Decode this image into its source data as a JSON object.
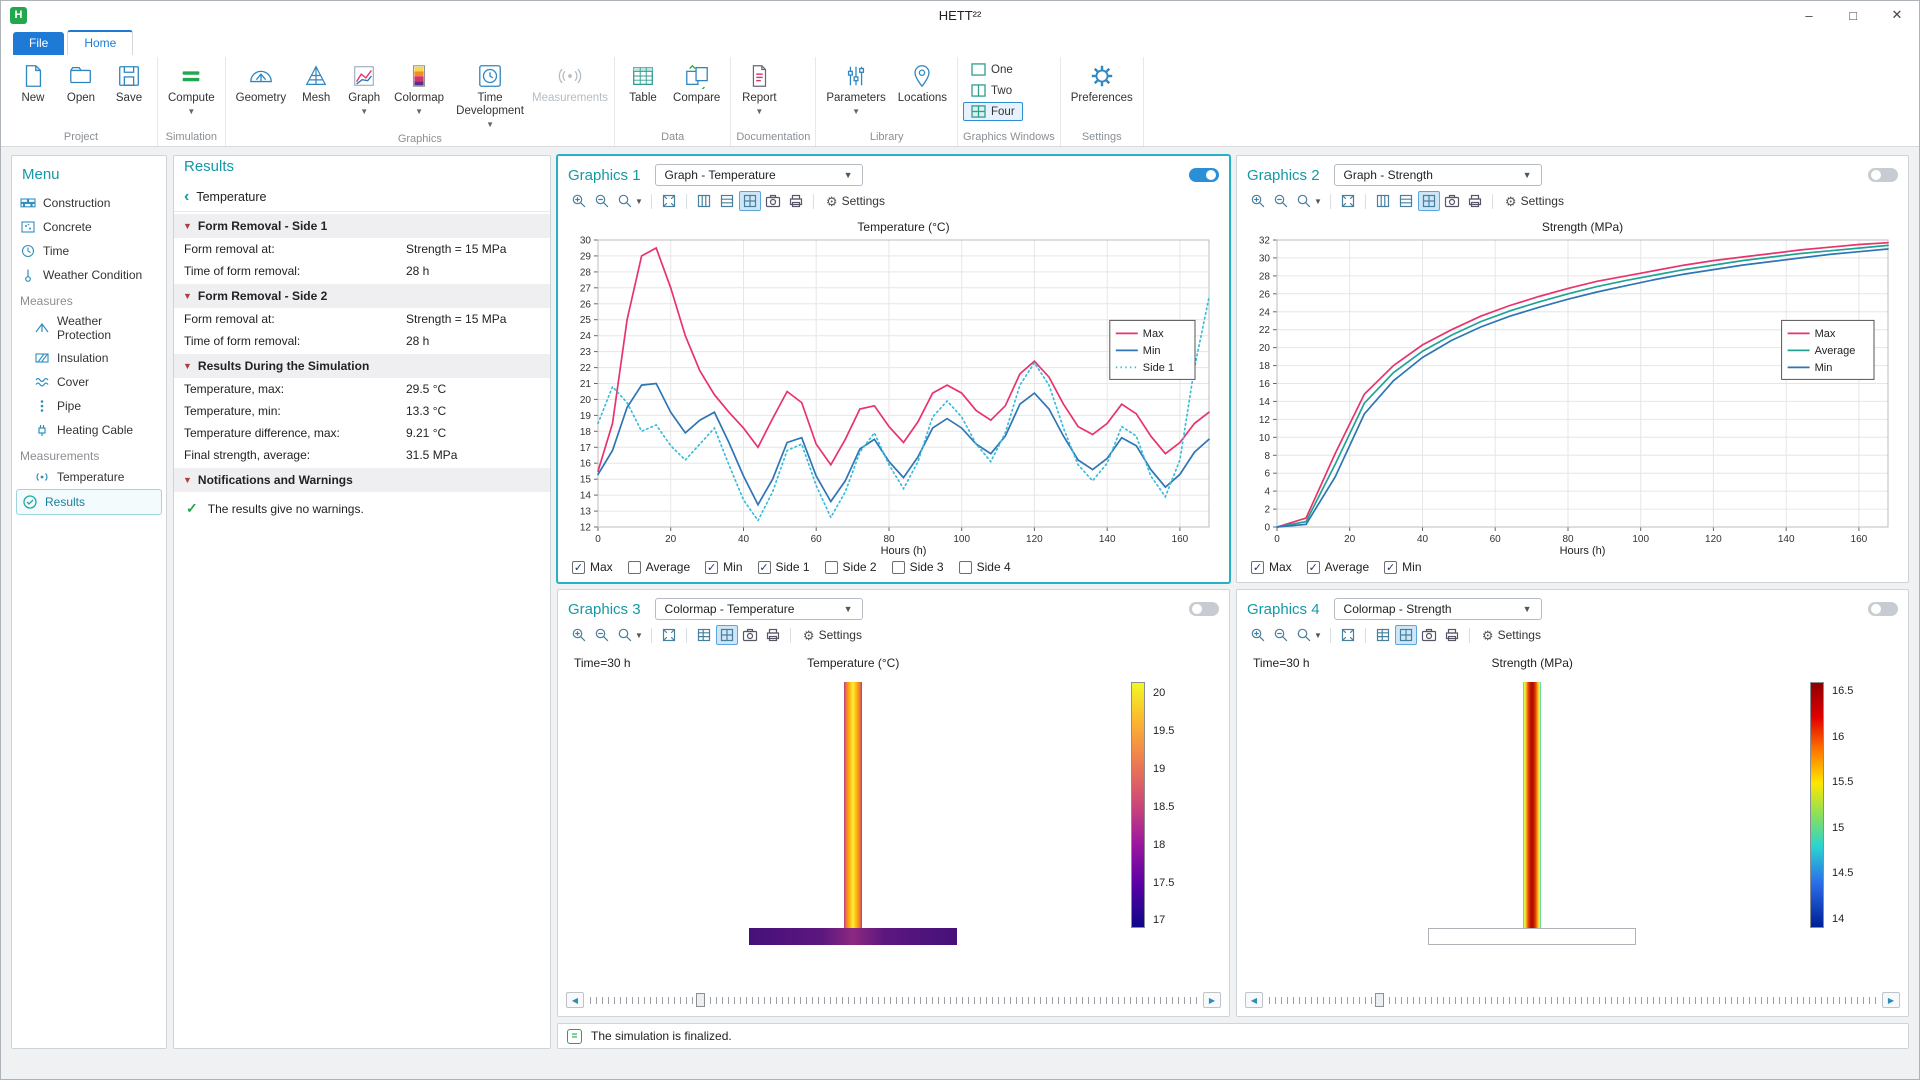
{
  "window": {
    "title": "HETT²²"
  },
  "tabs": {
    "file": {
      "label": "File"
    },
    "home": {
      "label": "Home"
    }
  },
  "ribbon": {
    "groups": [
      {
        "name": "Project",
        "items": [
          {
            "label": "New"
          },
          {
            "label": "Open"
          },
          {
            "label": "Save"
          }
        ]
      },
      {
        "name": "Simulation",
        "items": [
          {
            "label": "Compute"
          }
        ]
      },
      {
        "name": "Graphics",
        "items": [
          {
            "label": "Geometry"
          },
          {
            "label": "Mesh"
          },
          {
            "label": "Graph"
          },
          {
            "label": "Colormap"
          },
          {
            "label": "Time Development"
          },
          {
            "label": "Measurements"
          }
        ]
      },
      {
        "name": "Data",
        "items": [
          {
            "label": "Table"
          },
          {
            "label": "Compare"
          }
        ]
      },
      {
        "name": "Documentation",
        "items": [
          {
            "label": "Report"
          }
        ]
      },
      {
        "name": "Library",
        "items": [
          {
            "label": "Parameters"
          },
          {
            "label": "Locations"
          }
        ]
      },
      {
        "name": "Graphics Windows",
        "items": [
          {
            "label": "One"
          },
          {
            "label": "Two"
          },
          {
            "label": "Four"
          }
        ]
      },
      {
        "name": "Settings",
        "items": [
          {
            "label": "Preferences"
          }
        ]
      }
    ]
  },
  "menu": {
    "title": "Menu",
    "items": [
      {
        "label": "Construction"
      },
      {
        "label": "Concrete"
      },
      {
        "label": "Time"
      },
      {
        "label": "Weather Condition"
      },
      {
        "label": "Measures"
      },
      {
        "label": "Weather Protection"
      },
      {
        "label": "Insulation"
      },
      {
        "label": "Cover"
      },
      {
        "label": "Pipe"
      },
      {
        "label": "Heating Cable"
      },
      {
        "label": "Measurements"
      },
      {
        "label": "Temperature"
      },
      {
        "label": "Results"
      }
    ]
  },
  "results": {
    "title": "Results",
    "back_label": "Temperature",
    "sections": [
      {
        "title": "Form Removal - Side 1",
        "rows": [
          [
            "Form removal at:",
            "Strength = 15 MPa"
          ],
          [
            "Time of form removal:",
            "28 h"
          ]
        ]
      },
      {
        "title": "Form Removal - Side 2",
        "rows": [
          [
            "Form removal at:",
            "Strength = 15 MPa"
          ],
          [
            "Time of form removal:",
            "28 h"
          ]
        ]
      },
      {
        "title": "Results During the Simulation",
        "rows": [
          [
            "Temperature, max:",
            "29.5 °C"
          ],
          [
            "Temperature, min:",
            "13.3 °C"
          ],
          [
            "Temperature difference, max:",
            "9.21 °C"
          ],
          [
            "Final strength, average:",
            "31.5 MPa"
          ]
        ]
      },
      {
        "title": "Notifications and Warnings",
        "note": "The results give no warnings."
      }
    ]
  },
  "graphics_panels": [
    {
      "title": "Graphics 1",
      "dropdown": "Graph - Temperature",
      "settings": "Settings",
      "toggle_on": true,
      "checkboxes": [
        {
          "label": "Max",
          "checked": true
        },
        {
          "label": "Average",
          "checked": false
        },
        {
          "label": "Min",
          "checked": true
        },
        {
          "label": "Side 1",
          "checked": true
        },
        {
          "label": "Side 2",
          "checked": false
        },
        {
          "label": "Side 3",
          "checked": false
        },
        {
          "label": "Side 4",
          "checked": false
        }
      ]
    },
    {
      "title": "Graphics 2",
      "dropdown": "Graph - Strength",
      "settings": "Settings",
      "toggle_on": false,
      "checkboxes": [
        {
          "label": "Max",
          "checked": true
        },
        {
          "label": "Average",
          "checked": true
        },
        {
          "label": "Min",
          "checked": true
        }
      ]
    },
    {
      "title": "Graphics 3",
      "dropdown": "Colormap - Temperature",
      "settings": "Settings",
      "toggle_on": false
    },
    {
      "title": "Graphics 4",
      "dropdown": "Colormap - Strength",
      "settings": "Settings",
      "toggle_on": false
    }
  ],
  "status": {
    "message": "The simulation is finalized."
  },
  "colors": {
    "accent_teal": "#1499a6",
    "tab_blue": "#1e7ad4",
    "compute_green": "#21a84c",
    "toggle_on": "#2b8fd8",
    "series_pink": "#e8336e",
    "series_blue": "#2e75b6",
    "series_cyan": "#3bbcd9",
    "series_teal": "#21a394"
  },
  "chart_data": [
    {
      "type": "line",
      "title": "Temperature (°C)",
      "xlabel": "Hours (h)",
      "ylabel": "",
      "xlim": [
        0,
        168
      ],
      "ylim": [
        12,
        30
      ],
      "ytick_step": 1,
      "xticks": [
        0,
        20,
        40,
        60,
        80,
        100,
        120,
        140,
        160
      ],
      "legend_position": "right-middle",
      "grid": true,
      "x": [
        0,
        4,
        8,
        12,
        16,
        20,
        24,
        28,
        32,
        36,
        40,
        44,
        48,
        52,
        56,
        60,
        64,
        68,
        72,
        76,
        80,
        84,
        88,
        92,
        96,
        100,
        104,
        108,
        112,
        116,
        120,
        124,
        128,
        132,
        136,
        140,
        144,
        148,
        152,
        156,
        160,
        164,
        168
      ],
      "series": [
        {
          "name": "Max",
          "color": "#e8336e",
          "dash": null,
          "values": [
            15.5,
            18.5,
            25.0,
            29.0,
            29.5,
            27.0,
            24.0,
            21.8,
            20.3,
            19.2,
            18.2,
            17.0,
            18.8,
            20.5,
            19.8,
            17.2,
            15.9,
            17.5,
            19.4,
            19.6,
            18.3,
            17.3,
            18.6,
            20.4,
            20.9,
            20.4,
            19.3,
            18.7,
            19.6,
            21.6,
            22.4,
            21.4,
            19.7,
            18.3,
            17.8,
            18.5,
            19.7,
            19.1,
            17.7,
            16.6,
            17.3,
            18.5,
            19.2
          ]
        },
        {
          "name": "Min",
          "color": "#2e75b6",
          "dash": null,
          "values": [
            15.3,
            16.8,
            19.5,
            20.9,
            21.0,
            19.2,
            17.9,
            18.7,
            19.2,
            17.3,
            15.2,
            13.4,
            15.0,
            17.3,
            17.6,
            15.2,
            13.6,
            14.9,
            16.9,
            17.5,
            16.1,
            15.1,
            16.4,
            18.2,
            18.8,
            18.2,
            17.2,
            16.6,
            17.7,
            19.7,
            20.4,
            19.4,
            17.7,
            16.2,
            15.6,
            16.3,
            17.6,
            17.1,
            15.6,
            14.5,
            15.3,
            16.7,
            17.5
          ]
        },
        {
          "name": "Side 1",
          "color": "#3bbcd9",
          "dash": "1.5,3.2",
          "values": [
            18.5,
            20.8,
            19.8,
            18.0,
            18.4,
            17.1,
            16.2,
            17.2,
            18.2,
            15.9,
            13.7,
            12.4,
            14.2,
            16.8,
            17.2,
            14.6,
            12.6,
            14.2,
            16.7,
            17.9,
            15.9,
            14.4,
            16.1,
            18.9,
            19.9,
            18.9,
            17.2,
            16.1,
            17.9,
            20.9,
            22.3,
            20.9,
            18.2,
            15.9,
            14.9,
            16.0,
            18.3,
            17.7,
            15.2,
            13.9,
            16.2,
            22.0,
            26.4
          ]
        }
      ]
    },
    {
      "type": "line",
      "title": "Strength (MPa)",
      "xlabel": "Hours (h)",
      "ylabel": "",
      "xlim": [
        0,
        168
      ],
      "ylim": [
        0,
        32
      ],
      "ytick_step": 2,
      "xticks": [
        0,
        20,
        40,
        60,
        80,
        100,
        120,
        140,
        160
      ],
      "legend_position": "right-middle",
      "grid": true,
      "x": [
        0,
        8,
        16,
        24,
        32,
        40,
        48,
        56,
        64,
        72,
        80,
        88,
        96,
        104,
        112,
        120,
        128,
        136,
        144,
        152,
        160,
        168
      ],
      "series": [
        {
          "name": "Max",
          "color": "#e8336e",
          "dash": null,
          "values": [
            0,
            1.0,
            8.2,
            14.8,
            18.0,
            20.3,
            22.0,
            23.5,
            24.7,
            25.7,
            26.6,
            27.4,
            28.0,
            28.6,
            29.2,
            29.7,
            30.1,
            30.5,
            30.9,
            31.2,
            31.5,
            31.7
          ]
        },
        {
          "name": "Average",
          "color": "#21a394",
          "dash": null,
          "values": [
            0,
            0.6,
            7.0,
            13.8,
            17.2,
            19.6,
            21.4,
            22.9,
            24.1,
            25.1,
            26.0,
            26.8,
            27.5,
            28.1,
            28.7,
            29.2,
            29.7,
            30.1,
            30.5,
            30.8,
            31.1,
            31.4
          ]
        },
        {
          "name": "Min",
          "color": "#2e75b6",
          "dash": null,
          "values": [
            0,
            0.3,
            5.6,
            12.6,
            16.3,
            18.9,
            20.8,
            22.3,
            23.5,
            24.5,
            25.4,
            26.2,
            26.9,
            27.6,
            28.2,
            28.7,
            29.2,
            29.6,
            30.0,
            30.4,
            30.7,
            31.0
          ]
        }
      ]
    },
    {
      "type": "heatmap",
      "title": "Temperature (°C)",
      "time_label": "Time=30 h",
      "colorbar_ticks": [
        20,
        19.5,
        19,
        18.5,
        18,
        17.5,
        17
      ],
      "colorbar_range": [
        16.9,
        20.15
      ],
      "colorbar_gradient": [
        "#f0f921 0%",
        "#fdb42f 16%",
        "#ed7953 33%",
        "#cc4778 50%",
        "#9c179e 66%",
        "#5c01a6 82%",
        "#0d0887 100%"
      ],
      "column_gradient": [
        "#b5367a 0%",
        "#e16462 8%",
        "#fb9b06 22%",
        "#fbd724 42%",
        "#fdea45 50%",
        "#fbd724 58%",
        "#fb9b06 78%",
        "#e16462 92%",
        "#b5367a 100%"
      ],
      "slab_gradient": [
        "#46107a 0%",
        "#5c177f 35%",
        "#8c2981 50%",
        "#5c177f 65%",
        "#46107a 100%"
      ]
    },
    {
      "type": "heatmap",
      "title": "Strength (MPa)",
      "time_label": "Time=30 h",
      "colorbar_ticks": [
        16.5,
        16,
        15.5,
        15,
        14.5,
        14
      ],
      "colorbar_range": [
        13.9,
        16.6
      ],
      "colorbar_gradient": [
        "#8e0000 0%",
        "#e00000 14%",
        "#ff7a00 28%",
        "#ffe600 41%",
        "#8ae05a 54%",
        "#2bd4d0 67%",
        "#2a6ee8 82%",
        "#001f96 100%"
      ],
      "column_gradient": [
        "#3fc6e8 0%",
        "#8df05a 5%",
        "#f7fa40 10%",
        "#ffb020 18%",
        "#f05006 28%",
        "#c21a00 40%",
        "#a50e00 50%",
        "#c21a00 60%",
        "#f05006 72%",
        "#ffb020 82%",
        "#f7fa40 90%",
        "#8df05a 95%",
        "#3fc6e8 100%"
      ],
      "slab_gradient": null
    }
  ]
}
